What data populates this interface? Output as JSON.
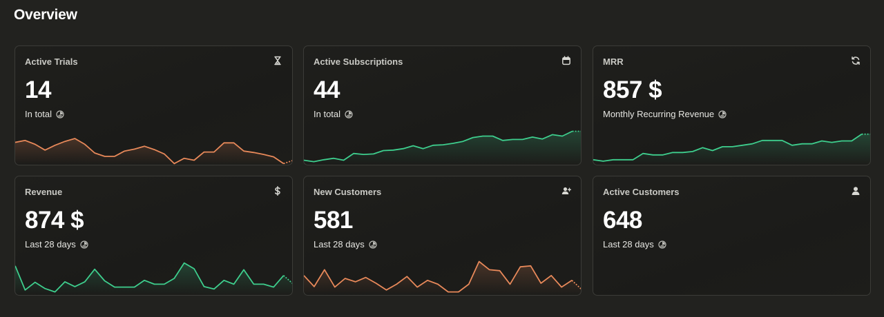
{
  "page": {
    "title": "Overview"
  },
  "cards": [
    {
      "id": "active-trials",
      "label": "Active Trials",
      "value": "14",
      "sub": "In total",
      "icon": "hourglass-icon",
      "trend_color": "#e8895a",
      "trend": [
        4.2,
        4.6,
        3.8,
        2.6,
        3.6,
        4.4,
        5.0,
        3.8,
        2.0,
        1.3,
        1.3,
        2.4,
        2.8,
        3.4,
        2.7,
        1.8,
        -0.2,
        0.9,
        0.5,
        2.2,
        2.2,
        4.1,
        4.1,
        2.4,
        2.1,
        1.7,
        1.2,
        -0.2,
        0.5
      ]
    },
    {
      "id": "active-subscriptions",
      "label": "Active Subscriptions",
      "value": "44",
      "sub": "In total",
      "icon": "calendar-icon",
      "trend_color": "#3ecf8e",
      "trend": [
        0.5,
        0.2,
        0.6,
        0.9,
        0.5,
        1.9,
        1.7,
        1.8,
        2.5,
        2.6,
        2.9,
        3.5,
        2.9,
        3.6,
        3.7,
        4.0,
        4.4,
        5.2,
        5.5,
        5.5,
        4.6,
        4.8,
        4.8,
        5.3,
        4.9,
        5.8,
        5.5,
        6.5,
        6.5
      ]
    },
    {
      "id": "mrr",
      "label": "MRR",
      "value": "857 $",
      "sub": "Monthly Recurring Revenue",
      "icon": "refresh-icon",
      "trend_color": "#3ecf8e",
      "trend": [
        0.6,
        0.3,
        0.6,
        0.6,
        0.6,
        1.9,
        1.6,
        1.6,
        2.1,
        2.1,
        2.3,
        3.1,
        2.5,
        3.3,
        3.3,
        3.6,
        3.9,
        4.6,
        4.6,
        4.6,
        3.6,
        3.9,
        3.9,
        4.5,
        4.2,
        4.5,
        4.5,
        5.9,
        5.9
      ]
    },
    {
      "id": "revenue",
      "label": "Revenue",
      "value": "874 $",
      "sub": "Last 28 days",
      "icon": "dollar-icon",
      "trend_color": "#3ecf8e",
      "trend": [
        5.6,
        0.6,
        2.2,
        0.9,
        0.2,
        2.3,
        1.3,
        2.3,
        4.9,
        2.5,
        1.2,
        1.2,
        1.2,
        2.6,
        1.8,
        1.8,
        3.0,
        6.2,
        5.0,
        1.3,
        0.8,
        2.6,
        1.8,
        4.8,
        1.8,
        1.8,
        1.2,
        3.6,
        1.8
      ]
    },
    {
      "id": "new-customers",
      "label": "New Customers",
      "value": "581",
      "sub": "Last 28 days",
      "icon": "user-plus-icon",
      "trend_color": "#e8895a",
      "trend": [
        3.6,
        1.3,
        4.8,
        1.2,
        3.0,
        2.3,
        3.2,
        2.0,
        0.6,
        1.8,
        3.4,
        1.2,
        2.6,
        1.8,
        0.2,
        0.2,
        1.8,
        6.5,
        4.8,
        4.6,
        1.8,
        5.4,
        5.6,
        2.0,
        3.6,
        1.2,
        2.6,
        0.6
      ]
    },
    {
      "id": "active-customers",
      "label": "Active Customers",
      "value": "648",
      "sub": "Last 28 days",
      "icon": "user-icon",
      "trend_color": "#3ecf8e",
      "trend": []
    }
  ]
}
